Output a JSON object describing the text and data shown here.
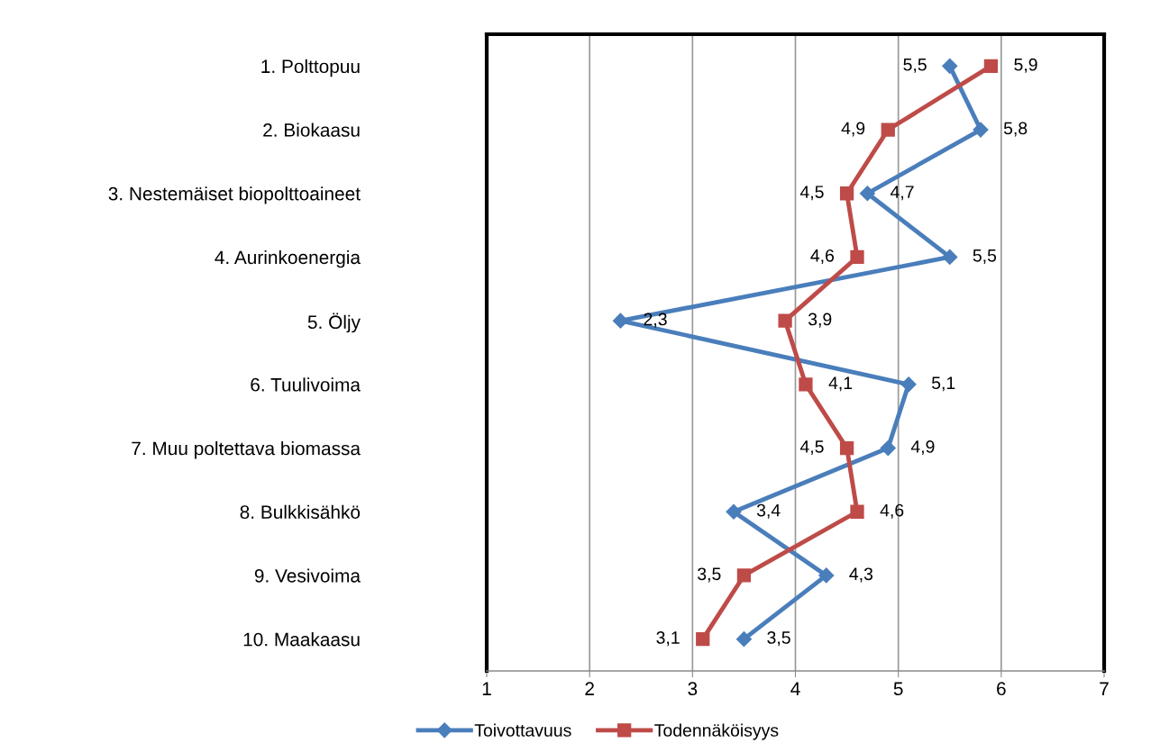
{
  "chart_data": {
    "type": "line",
    "orientation": "horizontal",
    "categories": [
      "1. Polttopuu",
      "2. Biokaasu",
      "3. Nestemäiset biopolttoaineet",
      "4. Aurinkoenergia",
      "5. Öljy",
      "6. Tuulivoima",
      "7. Muu poltettava biomassa",
      "8. Bulkkisähkö",
      "9. Vesivoima",
      "10. Maakaasu"
    ],
    "series": [
      {
        "name": "Toivottavuus",
        "color": "#4a7ebb",
        "marker": "diamond",
        "values": [
          5.5,
          5.8,
          4.7,
          5.5,
          2.3,
          5.1,
          4.9,
          3.4,
          4.3,
          3.5
        ],
        "value_labels": [
          "5,5",
          "5,8",
          "4,7",
          "5,5",
          "2,3",
          "5,1",
          "4,9",
          "3,4",
          "4,3",
          "3,5"
        ]
      },
      {
        "name": "Todennäköisyys",
        "color": "#be4b48",
        "marker": "square",
        "values": [
          5.9,
          4.9,
          4.5,
          4.6,
          3.9,
          4.1,
          4.5,
          4.6,
          3.5,
          3.1
        ],
        "value_labels": [
          "5,9",
          "4,9",
          "4,5",
          "4,6",
          "3,9",
          "4,1",
          "4,5",
          "4,6",
          "3,5",
          "3,1"
        ]
      }
    ],
    "xlim": [
      1,
      7
    ],
    "xticks": [
      1,
      2,
      3,
      4,
      5,
      6,
      7
    ],
    "grid": "x",
    "legend": "bottom",
    "line_style": "solid"
  }
}
